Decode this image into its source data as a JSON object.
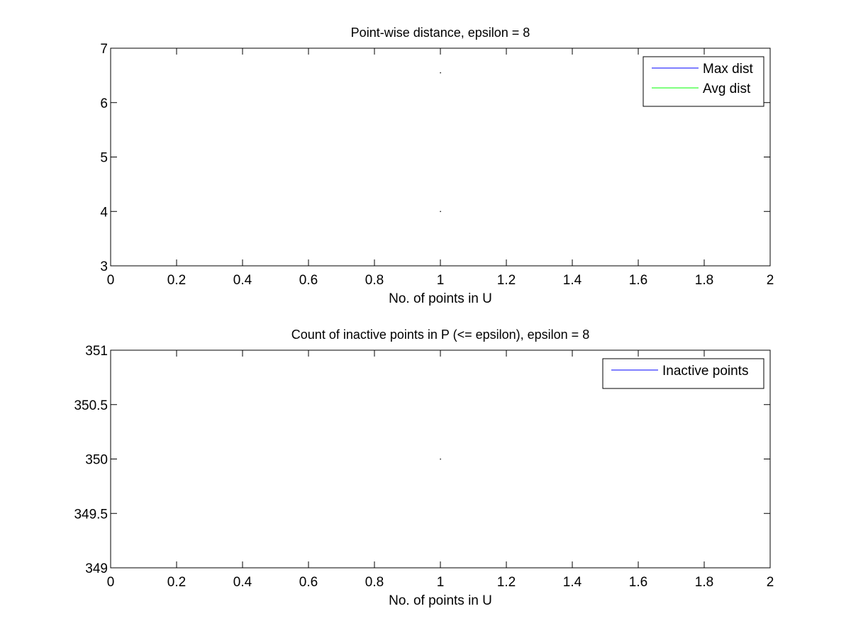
{
  "chart_data": [
    {
      "type": "line",
      "title": "Point-wise distance, epsilon = 8",
      "xlabel": "No. of points in U",
      "ylabel": "",
      "xlim": [
        0,
        2
      ],
      "ylim": [
        3,
        7
      ],
      "xticks": [
        0,
        0.2,
        0.4,
        0.6,
        0.8,
        1,
        1.2,
        1.4,
        1.6,
        1.8,
        2
      ],
      "xtick_labels": [
        "0",
        "0.2",
        "0.4",
        "0.6",
        "0.8",
        "1",
        "1.2",
        "1.4",
        "1.6",
        "1.8",
        "2"
      ],
      "yticks": [
        3,
        4,
        5,
        6,
        7
      ],
      "ytick_labels": [
        "3",
        "4",
        "5",
        "6",
        "7"
      ],
      "grid": false,
      "legend_position": "top-right",
      "series": [
        {
          "name": "Max dist",
          "color": "#0000ff",
          "x": [
            1
          ],
          "y": [
            6.55
          ]
        },
        {
          "name": "Avg dist",
          "color": "#00ff00",
          "x": [
            1
          ],
          "y": [
            4.0
          ]
        }
      ]
    },
    {
      "type": "line",
      "title": "Count of inactive points in P (<= epsilon), epsilon = 8",
      "xlabel": "No. of points in U",
      "ylabel": "",
      "xlim": [
        0,
        2
      ],
      "ylim": [
        349,
        351
      ],
      "xticks": [
        0,
        0.2,
        0.4,
        0.6,
        0.8,
        1,
        1.2,
        1.4,
        1.6,
        1.8,
        2
      ],
      "xtick_labels": [
        "0",
        "0.2",
        "0.4",
        "0.6",
        "0.8",
        "1",
        "1.2",
        "1.4",
        "1.6",
        "1.8",
        "2"
      ],
      "yticks": [
        349,
        349.5,
        350,
        350.5,
        351
      ],
      "ytick_labels": [
        "349",
        "349.5",
        "350",
        "350.5",
        "351"
      ],
      "grid": false,
      "legend_position": "top-right",
      "series": [
        {
          "name": "Inactive points",
          "color": "#0000ff",
          "x": [
            1
          ],
          "y": [
            350
          ]
        }
      ]
    }
  ]
}
